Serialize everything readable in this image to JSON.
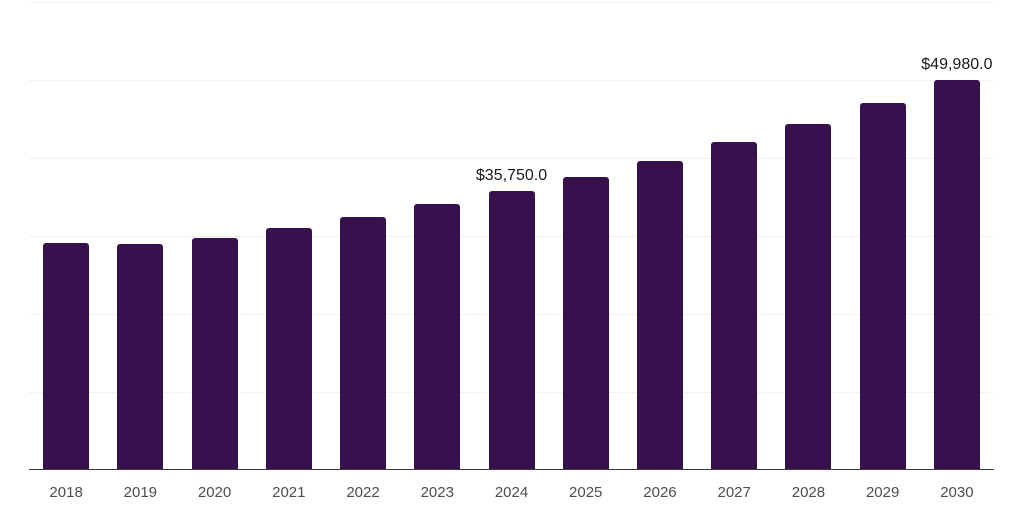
{
  "chart": {
    "background_color": "#ffffff",
    "bar_color": "#37114D",
    "gridline_color": "#f0f0f0",
    "axis_line_color": "#3a3a3a",
    "tick_label_color": "#4d4d4d",
    "data_label_color": "#1a1a1a"
  },
  "chart_data": {
    "type": "bar",
    "title": "",
    "xlabel": "",
    "ylabel": "",
    "categories": [
      "2018",
      "2019",
      "2020",
      "2021",
      "2022",
      "2023",
      "2024",
      "2025",
      "2026",
      "2027",
      "2028",
      "2029",
      "2030"
    ],
    "values": [
      29050,
      28950,
      29750,
      31000,
      32500,
      34100,
      35750,
      37600,
      39650,
      42000,
      44350,
      47050,
      49980
    ],
    "data_labels": [
      null,
      null,
      null,
      null,
      null,
      null,
      "$35,750.0",
      null,
      null,
      null,
      null,
      null,
      "$49,980.0"
    ],
    "ylim": [
      0,
      60000
    ],
    "gridline_step": 10000,
    "grid": "horizontal",
    "legend": "none",
    "y_axis_labels": "hidden"
  }
}
